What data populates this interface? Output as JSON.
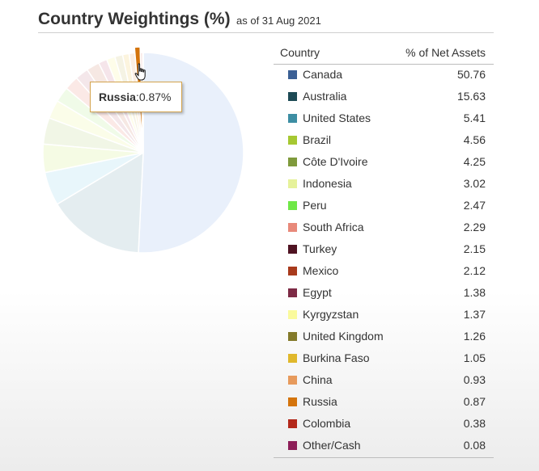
{
  "header": {
    "title": "Country Weightings (%)",
    "as_of": "as of 31 Aug 2021"
  },
  "tooltip": {
    "country": "Russia",
    "value": "0.87%"
  },
  "table": {
    "col_country": "Country",
    "col_value": "% of Net Assets"
  },
  "chart_data": {
    "type": "pie",
    "highlighted": "Russia",
    "slices": [
      {
        "label": "Canada",
        "value": 50.76,
        "color": "#3a5f94",
        "faded": "#e9f0fb"
      },
      {
        "label": "Australia",
        "value": 15.63,
        "color": "#1d4a55",
        "faded": "#e4edf0"
      },
      {
        "label": "United States",
        "value": 5.41,
        "color": "#3d8ea3",
        "faded": "#e8f6fb"
      },
      {
        "label": "Brazil",
        "value": 4.56,
        "color": "#a6c832",
        "faded": "#f5fbe4"
      },
      {
        "label": "Côte D'Ivoire",
        "value": 4.25,
        "color": "#7f9a3c",
        "faded": "#f1f6e6"
      },
      {
        "label": "Indonesia",
        "value": 3.02,
        "color": "#e6f29a",
        "faded": "#fbfde9"
      },
      {
        "label": "Peru",
        "value": 2.47,
        "color": "#6fe847",
        "faded": "#f0fbe8"
      },
      {
        "label": "South Africa",
        "value": 2.29,
        "color": "#e8897a",
        "faded": "#fbe9e6"
      },
      {
        "label": "Turkey",
        "value": 2.15,
        "color": "#4f1322",
        "faded": "#f4e7ea"
      },
      {
        "label": "Mexico",
        "value": 2.12,
        "color": "#a83a1c",
        "faded": "#f6e8e3"
      },
      {
        "label": "Egypt",
        "value": 1.38,
        "color": "#7d2a45",
        "faded": "#f5e5ea"
      },
      {
        "label": "Kyrgyzstan",
        "value": 1.37,
        "color": "#fafa9c",
        "faded": "#fefde9"
      },
      {
        "label": "United Kingdom",
        "value": 1.26,
        "color": "#837a2a",
        "faded": "#f5f3e4"
      },
      {
        "label": "Burkina Faso",
        "value": 1.05,
        "color": "#e0b82c",
        "faded": "#fcf4de"
      },
      {
        "label": "China",
        "value": 0.93,
        "color": "#e79a5c",
        "faded": "#fcefe3"
      },
      {
        "label": "Russia",
        "value": 0.87,
        "color": "#d4740c",
        "faded": "#fbebd6"
      },
      {
        "label": "Colombia",
        "value": 0.38,
        "color": "#b3281a",
        "faded": "#f7e3e0"
      },
      {
        "label": "Other/Cash",
        "value": 0.08,
        "color": "#8d1e58",
        "faded": "#f6e4ee"
      }
    ]
  }
}
